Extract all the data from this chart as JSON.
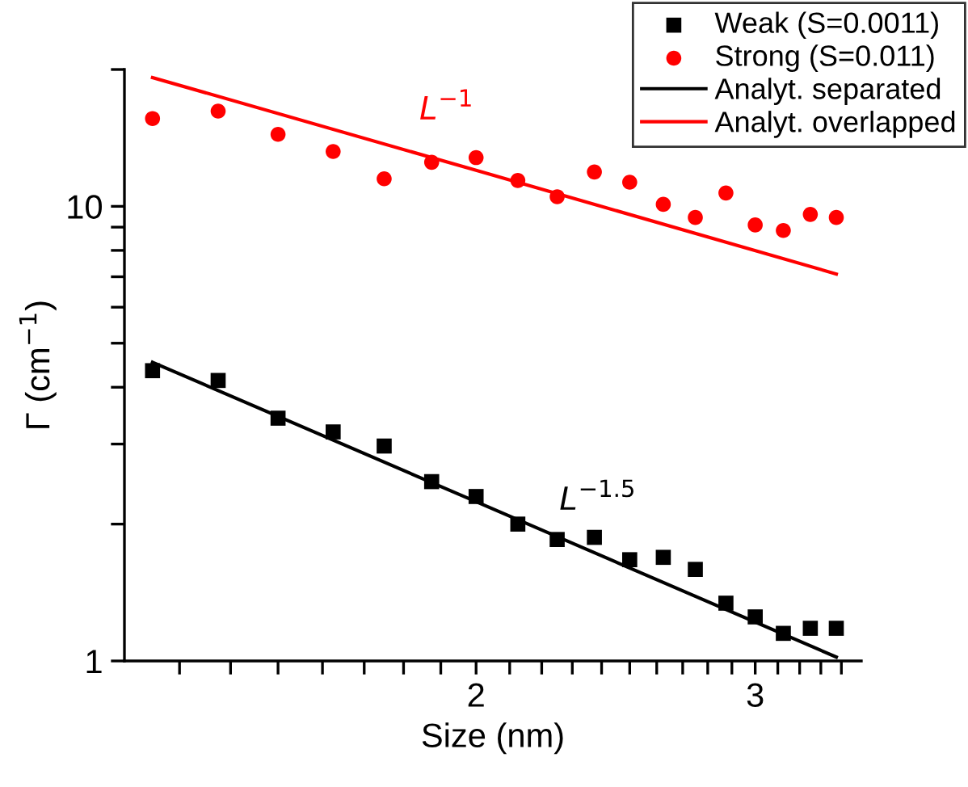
{
  "chart_data": {
    "type": "scatter",
    "xlabel": "Size (nm)",
    "ylabel": "Γ (cm$^{−1}$)",
    "log": "xy",
    "legend": "top right",
    "grid": false,
    "xlim": [
      1.2,
      3.5
    ],
    "ylim": [
      1,
      20
    ],
    "xticks": [
      {
        "value": 1.3,
        "label": null
      },
      {
        "value": 1.4,
        "label": null
      },
      {
        "value": 1.5,
        "label": null
      },
      {
        "value": 1.6,
        "label": null
      },
      {
        "value": 1.7,
        "label": null
      },
      {
        "value": 1.8,
        "label": null
      },
      {
        "value": 1.9,
        "label": null
      },
      2,
      {
        "value": 2.1,
        "label": null
      },
      {
        "value": 2.2,
        "label": null
      },
      {
        "value": 2.3,
        "label": null
      },
      {
        "value": 2.4,
        "label": null
      },
      {
        "value": 2.5,
        "label": null
      },
      {
        "value": 2.6,
        "label": null
      },
      {
        "value": 2.7,
        "label": null
      },
      {
        "value": 2.8,
        "label": null
      },
      {
        "value": 2.9,
        "label": null
      },
      3,
      {
        "value": 3.1,
        "label": null
      },
      {
        "value": 3.2,
        "label": null
      },
      {
        "value": 3.3,
        "label": null
      },
      {
        "value": 3.4,
        "label": null
      }
    ],
    "yticks": [
      1,
      {
        "value": 2,
        "label": null
      },
      {
        "value": 3,
        "label": null
      },
      {
        "value": 4,
        "label": null
      },
      {
        "value": 5,
        "label": null
      },
      {
        "value": 6,
        "label": null
      },
      {
        "value": 7,
        "label": null
      },
      {
        "value": 8,
        "label": null
      },
      {
        "value": 9,
        "label": null
      },
      10,
      {
        "value": 20,
        "label": null
      }
    ],
    "x": [
      1.25,
      1.375,
      1.5,
      1.625,
      1.75,
      1.875,
      2.0,
      2.125,
      2.25,
      2.375,
      2.5,
      2.625,
      2.75,
      2.875,
      3.0,
      3.125,
      3.25,
      3.375
    ],
    "series": [
      {
        "name": "Weak (S=0.0011)",
        "marker": "square",
        "color": "#000000",
        "values": [
          4.35,
          4.14,
          3.42,
          3.19,
          2.97,
          2.48,
          2.3,
          2.0,
          1.85,
          1.87,
          1.67,
          1.69,
          1.59,
          1.34,
          1.25,
          1.15,
          1.18,
          1.18
        ]
      },
      {
        "name": "Strong (S=0.011)",
        "marker": "circle",
        "color": "#ff0000",
        "values": [
          15.6,
          16.2,
          14.4,
          13.2,
          11.5,
          12.5,
          12.8,
          11.4,
          10.5,
          11.9,
          11.3,
          10.1,
          9.45,
          10.7,
          9.1,
          8.85,
          9.6,
          9.45
        ]
      },
      {
        "name": "Analyt. separated",
        "type": "line",
        "marker": "none",
        "line_style": "solid",
        "color": "#000000",
        "x": [
          1.25,
          2.0,
          3.375
        ],
        "values": [
          4.54,
          2.24,
          1.02
        ]
      },
      {
        "name": "Analyt. overlapped",
        "type": "line",
        "marker": "none",
        "line_style": "solid",
        "color": "#ff0000",
        "x": [
          1.25,
          2.0,
          3.375
        ],
        "values": [
          19.2,
          12.0,
          7.1
        ]
      }
    ],
    "annotations": [
      "L$^{−1}$",
      "L$^{−1.5}$"
    ]
  }
}
